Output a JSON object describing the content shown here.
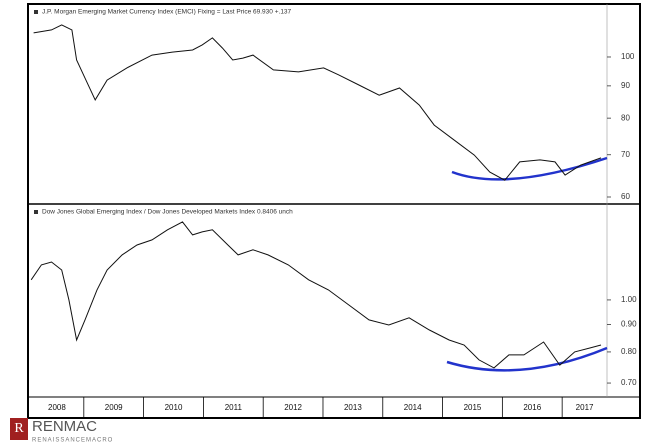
{
  "chart_data": [
    {
      "type": "line",
      "title": "J.P. Morgan Emerging Market Currency Index (EMCI) Fixing = Last Price 69.930 +.137",
      "x": [
        2008.16,
        2008.46,
        2008.63,
        2008.8,
        2008.88,
        2009.02,
        2009.19,
        2009.39,
        2009.72,
        2010.14,
        2010.48,
        2010.82,
        2010.98,
        2011.15,
        2011.32,
        2011.49,
        2011.66,
        2011.83,
        2012.17,
        2012.59,
        2013.01,
        2013.26,
        2013.6,
        2013.94,
        2014.28,
        2014.61,
        2014.86,
        2015.2,
        2015.53,
        2015.79,
        2016.04,
        2016.29,
        2016.63,
        2016.88,
        2017.05,
        2017.31,
        2017.65
      ],
      "values": [
        109.2,
        110.4,
        112.4,
        110.4,
        98.9,
        92.6,
        85.5,
        91.9,
        96.1,
        100.7,
        101.8,
        102.6,
        104.5,
        107.2,
        103.3,
        98.9,
        99.6,
        100.7,
        95.4,
        94.7,
        96.1,
        93.7,
        90.3,
        87.0,
        89.3,
        83.9,
        78.0,
        73.8,
        69.9,
        65.7,
        63.8,
        68.2,
        68.7,
        68.2,
        65.0,
        67.4,
        69.2
      ],
      "color": "#111111",
      "log_scale": true,
      "xlim": [
        2008.1,
        2017.75
      ],
      "ylim": [
        58.7,
        118.7
      ],
      "yticks": [
        60,
        70,
        80,
        90,
        100
      ]
    },
    {
      "type": "line",
      "title": "Dow Jones Global Emerging Index / Dow Jones Developed Markets Index 0.8406 unch",
      "x": [
        2008.12,
        2008.29,
        2008.46,
        2008.63,
        2008.75,
        2008.88,
        2009.02,
        2009.22,
        2009.39,
        2009.64,
        2009.89,
        2010.14,
        2010.4,
        2010.65,
        2010.82,
        2010.98,
        2011.15,
        2011.41,
        2011.58,
        2011.83,
        2012.08,
        2012.42,
        2012.76,
        2013.09,
        2013.43,
        2013.77,
        2014.1,
        2014.44,
        2014.78,
        2015.11,
        2015.36,
        2015.61,
        2015.86,
        2016.11,
        2016.36,
        2016.69,
        2016.96,
        2017.21,
        2017.47,
        2017.65
      ],
      "values": [
        1.09,
        1.162,
        1.177,
        1.137,
        1.0,
        0.842,
        0.918,
        1.044,
        1.137,
        1.213,
        1.266,
        1.294,
        1.351,
        1.398,
        1.322,
        1.339,
        1.351,
        1.266,
        1.213,
        1.24,
        1.213,
        1.162,
        1.09,
        1.044,
        0.979,
        0.918,
        0.898,
        0.926,
        0.879,
        0.842,
        0.824,
        0.773,
        0.747,
        0.79,
        0.79,
        0.835,
        0.756,
        0.8,
        0.814,
        0.824
      ],
      "color": "#111111",
      "log_scale": true,
      "xlim": [
        2008.1,
        2017.75
      ],
      "ylim": [
        0.665,
        1.49
      ],
      "yticks": [
        {
          "value": 0.7,
          "label": "0.70"
        },
        {
          "value": 0.8,
          "label": "0.80"
        },
        {
          "value": 0.9,
          "label": "0.90"
        },
        {
          "value": 1.0,
          "label": "1.00"
        }
      ],
      "xticks": [
        2008,
        2009,
        2010,
        2011,
        2012,
        2013,
        2014,
        2015,
        2016,
        2017
      ]
    }
  ],
  "brand": {
    "icon": "R",
    "name": "RENMAC",
    "tagline": "RENAISSANCEMACRO"
  }
}
